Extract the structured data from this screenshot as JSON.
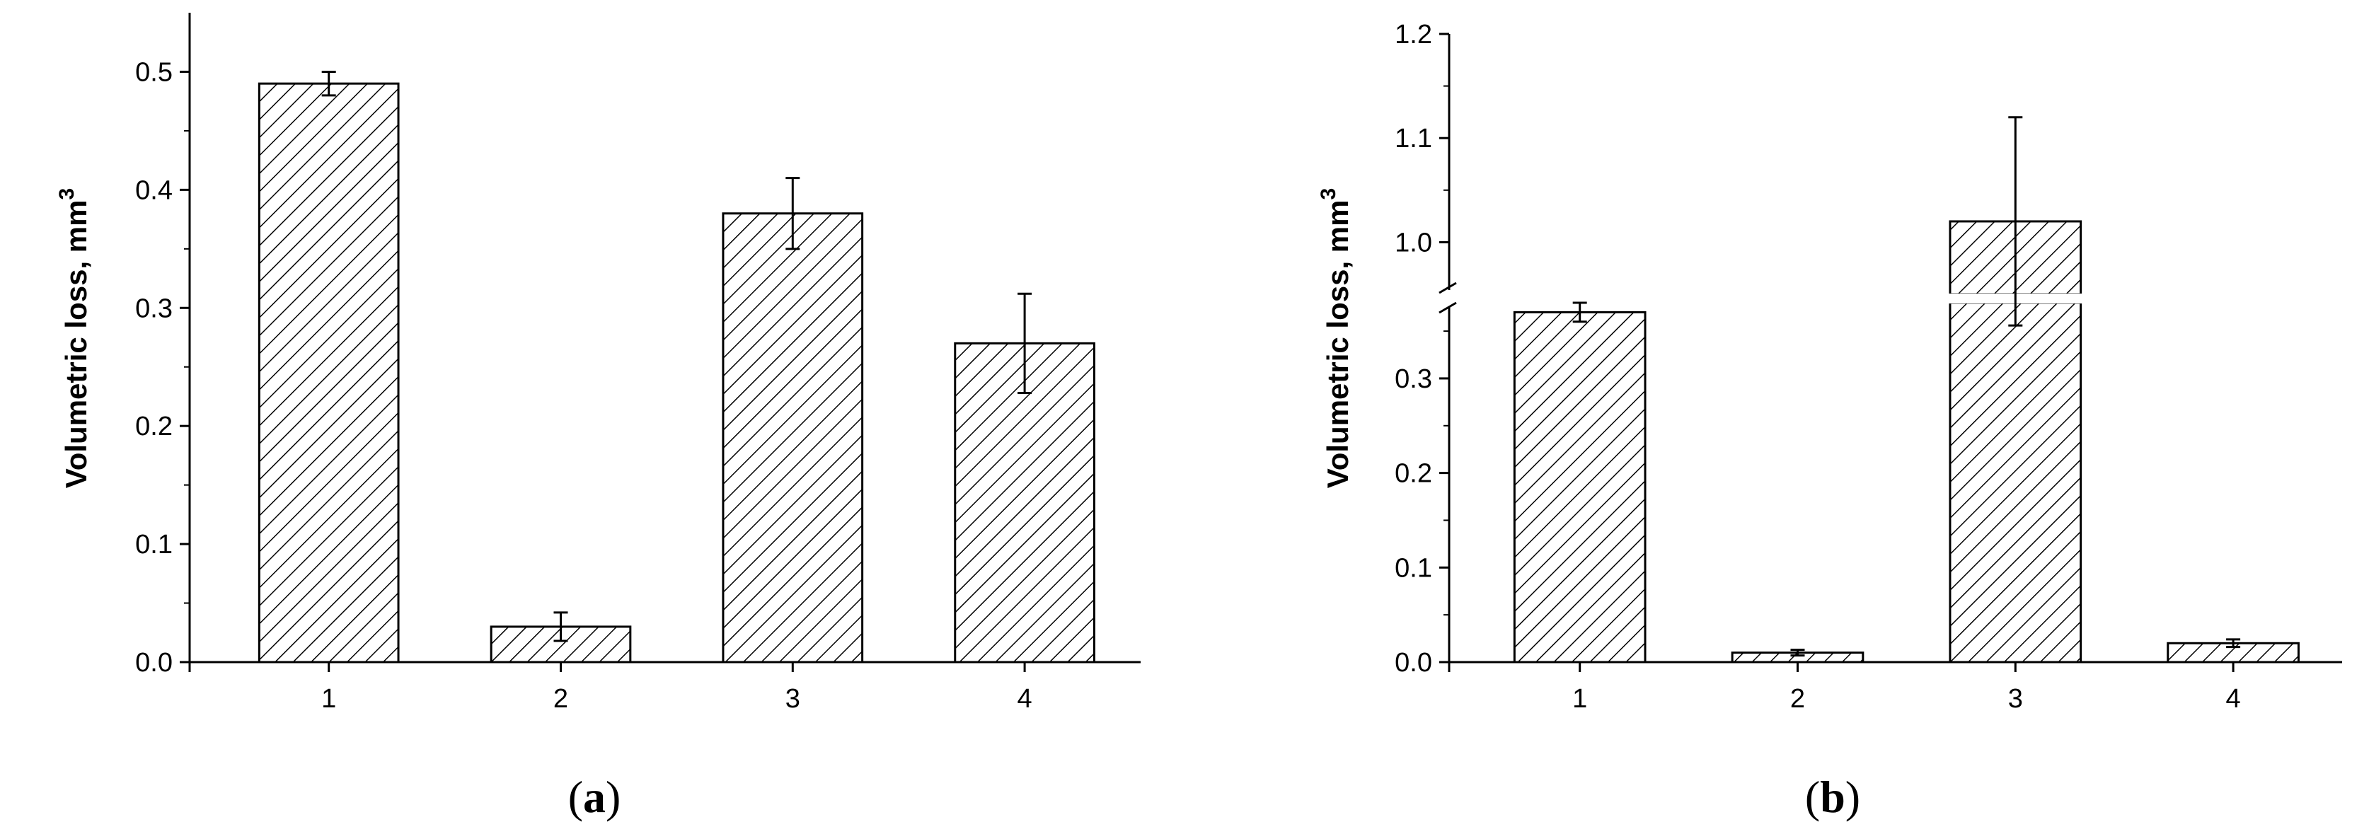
{
  "chart_data": [
    {
      "type": "bar",
      "panel_label": "a",
      "ylabel": "Volumetric loss, mm",
      "ylabel_superscript": "3",
      "categories": [
        "1",
        "2",
        "3",
        "4"
      ],
      "values": [
        0.49,
        0.03,
        0.38,
        0.27
      ],
      "errors": [
        0.01,
        0.012,
        0.03,
        0.042
      ],
      "ylim": [
        0,
        0.55
      ],
      "yticks": [
        "0.0",
        "0.1",
        "0.2",
        "0.3",
        "0.4",
        "0.5"
      ],
      "grid": false,
      "bar_fill": "diagonal hatch"
    },
    {
      "type": "bar",
      "panel_label": "b",
      "ylabel": "Volumetric loss, mm",
      "ylabel_superscript": "3",
      "categories": [
        "1",
        "2",
        "3",
        "4"
      ],
      "values": [
        0.37,
        0.01,
        1.02,
        0.02
      ],
      "errors": [
        0.01,
        0.003,
        0.1,
        0.004
      ],
      "axis_break": [
        0.38,
        0.95
      ],
      "ylim_lower": [
        0,
        0.38
      ],
      "ylim_upper": [
        0.95,
        1.2
      ],
      "yticks": [
        "0.0",
        "0.1",
        "0.2",
        "0.3",
        "1.0",
        "1.1",
        "1.2"
      ],
      "grid": false,
      "bar_fill": "diagonal hatch"
    }
  ]
}
